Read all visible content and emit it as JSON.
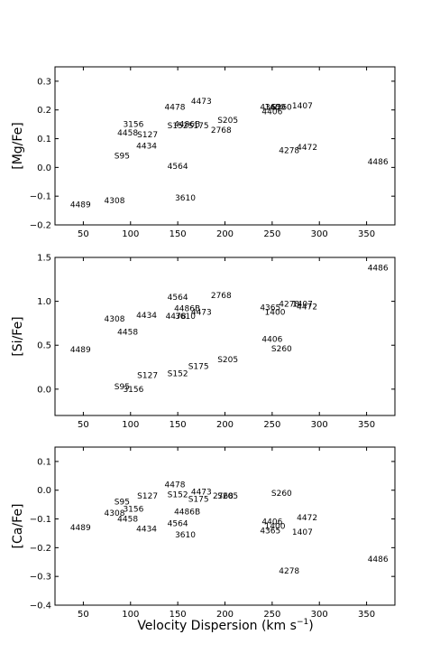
{
  "xlabel": "Velocity Dispersion (km s",
  "xlabel_sup": "−1",
  "xlabel_close": ")",
  "chart_data": [
    {
      "type": "scatter",
      "ylabel": "[Mg/Fe]",
      "xlim": [
        20,
        380
      ],
      "ylim": [
        -0.2,
        0.35
      ],
      "xticks": [
        50,
        100,
        150,
        200,
        250,
        300,
        350
      ],
      "xticklabels": [
        "50",
        "100",
        "150",
        "200",
        "250",
        "300",
        "350"
      ],
      "yticks": [
        -0.2,
        -0.1,
        0.0,
        0.1,
        0.2,
        0.3
      ],
      "yticklabels": [
        "−0.2",
        "−0.1",
        "0.0",
        "0.1",
        "0.2",
        "0.3"
      ],
      "points": [
        {
          "label": "4489",
          "x": 47,
          "y": -0.13
        },
        {
          "label": "4308",
          "x": 83,
          "y": -0.115
        },
        {
          "label": "S95",
          "x": 91,
          "y": 0.04
        },
        {
          "label": "4458",
          "x": 97,
          "y": 0.12
        },
        {
          "label": "3156",
          "x": 103,
          "y": 0.15
        },
        {
          "label": "S127",
          "x": 118,
          "y": 0.115
        },
        {
          "label": "4434",
          "x": 117,
          "y": 0.075
        },
        {
          "label": "4478",
          "x": 147,
          "y": 0.21
        },
        {
          "label": "S152",
          "x": 150,
          "y": 0.145
        },
        {
          "label": "4486B",
          "x": 160,
          "y": 0.15
        },
        {
          "label": "S175",
          "x": 172,
          "y": 0.145
        },
        {
          "label": "4473",
          "x": 175,
          "y": 0.23
        },
        {
          "label": "4564",
          "x": 150,
          "y": 0.005
        },
        {
          "label": "3610",
          "x": 158,
          "y": -0.105
        },
        {
          "label": "S205",
          "x": 203,
          "y": 0.165
        },
        {
          "label": "2768",
          "x": 196,
          "y": 0.13
        },
        {
          "label": "4365",
          "x": 248,
          "y": 0.21
        },
        {
          "label": "1400",
          "x": 253,
          "y": 0.21
        },
        {
          "label": "S260",
          "x": 260,
          "y": 0.21
        },
        {
          "label": "4406",
          "x": 250,
          "y": 0.195
        },
        {
          "label": "1407",
          "x": 282,
          "y": 0.215
        },
        {
          "label": "4278",
          "x": 268,
          "y": 0.06
        },
        {
          "label": "4472",
          "x": 287,
          "y": 0.07
        },
        {
          "label": "4486",
          "x": 362,
          "y": 0.02
        }
      ]
    },
    {
      "type": "scatter",
      "ylabel": "[Si/Fe]",
      "xlim": [
        20,
        380
      ],
      "ylim": [
        -0.3,
        1.5
      ],
      "xticks": [
        50,
        100,
        150,
        200,
        250,
        300,
        350
      ],
      "xticklabels": [
        "50",
        "100",
        "150",
        "200",
        "250",
        "300",
        "350"
      ],
      "yticks": [
        0.0,
        0.5,
        1.0,
        1.5
      ],
      "yticklabels": [
        "0.0",
        "0.5",
        "1.0",
        "1.5"
      ],
      "points": [
        {
          "label": "4489",
          "x": 47,
          "y": 0.45
        },
        {
          "label": "4308",
          "x": 83,
          "y": 0.8
        },
        {
          "label": "4458",
          "x": 97,
          "y": 0.65
        },
        {
          "label": "4434",
          "x": 117,
          "y": 0.84
        },
        {
          "label": "4478",
          "x": 148,
          "y": 0.83
        },
        {
          "label": "4564",
          "x": 150,
          "y": 1.05
        },
        {
          "label": "4486B",
          "x": 160,
          "y": 0.92
        },
        {
          "label": "3610",
          "x": 158,
          "y": 0.83
        },
        {
          "label": "4473",
          "x": 175,
          "y": 0.88
        },
        {
          "label": "2768",
          "x": 196,
          "y": 1.07
        },
        {
          "label": "S95",
          "x": 91,
          "y": 0.03
        },
        {
          "label": "3156",
          "x": 103,
          "y": 0.0
        },
        {
          "label": "S127",
          "x": 118,
          "y": 0.16
        },
        {
          "label": "S152",
          "x": 150,
          "y": 0.18
        },
        {
          "label": "S175",
          "x": 172,
          "y": 0.26
        },
        {
          "label": "S205",
          "x": 203,
          "y": 0.34
        },
        {
          "label": "4365",
          "x": 248,
          "y": 0.93
        },
        {
          "label": "1400",
          "x": 253,
          "y": 0.88
        },
        {
          "label": "4278",
          "x": 268,
          "y": 0.97
        },
        {
          "label": "1407",
          "x": 282,
          "y": 0.97
        },
        {
          "label": "4472",
          "x": 287,
          "y": 0.94
        },
        {
          "label": "4406",
          "x": 250,
          "y": 0.57
        },
        {
          "label": "S260",
          "x": 260,
          "y": 0.46
        },
        {
          "label": "4486",
          "x": 362,
          "y": 1.38
        }
      ]
    },
    {
      "type": "scatter",
      "ylabel": "[Ca/Fe]",
      "xlim": [
        20,
        380
      ],
      "ylim": [
        -0.4,
        0.15
      ],
      "xticks": [
        50,
        100,
        150,
        200,
        250,
        300,
        350
      ],
      "xticklabels": [
        "50",
        "100",
        "150",
        "200",
        "250",
        "300",
        "350"
      ],
      "yticks": [
        -0.4,
        -0.3,
        -0.2,
        -0.1,
        0.0,
        0.1
      ],
      "yticklabels": [
        "−0.4",
        "−0.3",
        "−0.2",
        "−0.1",
        "0.0",
        "0.1"
      ],
      "points": [
        {
          "label": "4489",
          "x": 47,
          "y": -0.13
        },
        {
          "label": "4308",
          "x": 83,
          "y": -0.08
        },
        {
          "label": "S95",
          "x": 91,
          "y": -0.04
        },
        {
          "label": "3156",
          "x": 103,
          "y": -0.065
        },
        {
          "label": "4458",
          "x": 97,
          "y": -0.1
        },
        {
          "label": "S127",
          "x": 118,
          "y": -0.02
        },
        {
          "label": "4434",
          "x": 117,
          "y": -0.135
        },
        {
          "label": "4478",
          "x": 147,
          "y": 0.02
        },
        {
          "label": "S152",
          "x": 150,
          "y": -0.015
        },
        {
          "label": "4486B",
          "x": 160,
          "y": -0.075
        },
        {
          "label": "4564",
          "x": 150,
          "y": -0.115
        },
        {
          "label": "3610",
          "x": 158,
          "y": -0.155
        },
        {
          "label": "4473",
          "x": 175,
          "y": -0.005
        },
        {
          "label": "S175",
          "x": 172,
          "y": -0.03
        },
        {
          "label": "2768",
          "x": 198,
          "y": -0.02
        },
        {
          "label": "S205",
          "x": 203,
          "y": -0.02
        },
        {
          "label": "S260",
          "x": 260,
          "y": -0.01
        },
        {
          "label": "4406",
          "x": 250,
          "y": -0.11
        },
        {
          "label": "1400",
          "x": 253,
          "y": -0.125
        },
        {
          "label": "4365",
          "x": 248,
          "y": -0.14
        },
        {
          "label": "4472",
          "x": 287,
          "y": -0.095
        },
        {
          "label": "1407",
          "x": 282,
          "y": -0.145
        },
        {
          "label": "4278",
          "x": 268,
          "y": -0.28
        },
        {
          "label": "4486",
          "x": 362,
          "y": -0.24
        }
      ]
    }
  ]
}
